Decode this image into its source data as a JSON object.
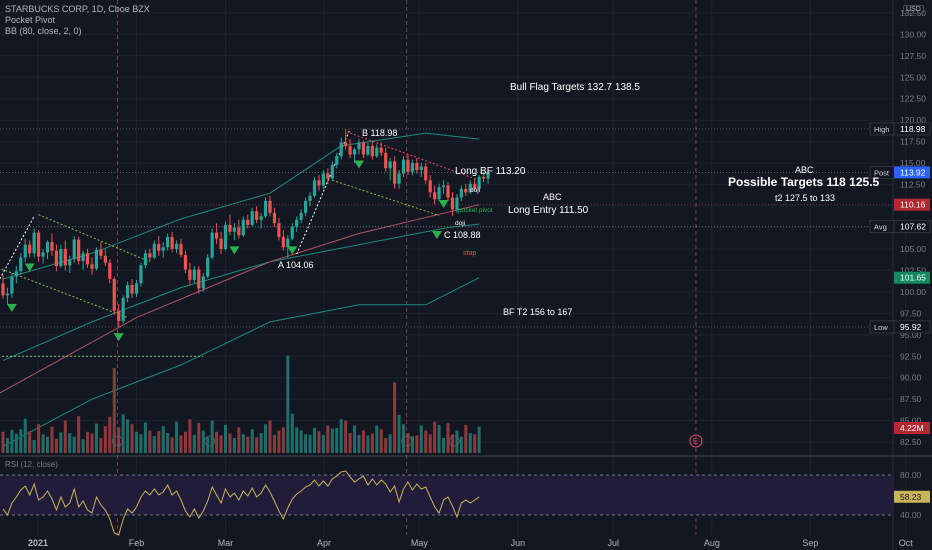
{
  "header": {
    "symbol_line": "STARBUCKS CORP, 1D, Cboe BZX",
    "indicator_1": "Pocket Pivot",
    "indicator_2": "BB (80, close, 2, 0)",
    "currency": "USD"
  },
  "rsi": {
    "legend": "RSI (12, close)",
    "current_value": "58.23",
    "axis_ticks": [
      "80.00",
      "40.00"
    ]
  },
  "price_axis": {
    "ticks": [
      "132.50",
      "130.00",
      "127.50",
      "125.00",
      "122.50",
      "120.00",
      "117.50",
      "115.00",
      "112.50",
      "110.00",
      "107.50",
      "105.00",
      "102.50",
      "100.00",
      "97.50",
      "95.00",
      "92.50",
      "90.00",
      "87.50",
      "85.00",
      "82.50"
    ]
  },
  "price_labels": [
    {
      "label": "High",
      "value": "118.98",
      "color": "#131722"
    },
    {
      "label": "Post",
      "value": "113.92",
      "color": "#2962ff"
    },
    {
      "label": "",
      "value": "110.16",
      "color": "#b22833"
    },
    {
      "label": "Avg",
      "value": "107.62",
      "color": "#131722"
    },
    {
      "label": "",
      "value": "101.65",
      "color": "#138a5e"
    },
    {
      "label": "Low",
      "value": "95.92",
      "color": "#131722"
    },
    {
      "label": "",
      "value": "4.22M",
      "color": "#b22833"
    }
  ],
  "time_axis": [
    "2021",
    "Feb",
    "Mar",
    "Apr",
    "May",
    "Jun",
    "Jul",
    "Aug",
    "Sep",
    "Oct"
  ],
  "annotations": {
    "bull_flag": "Bull Flag Targets  132.7  138.5",
    "b_point": "B 118.98",
    "long_bf": "Long BF 113.20",
    "abc_small": "ABC",
    "long_entry": "Long Entry  111.50",
    "doji_1": "doji",
    "doji_2": "doji",
    "pocket_pivot": "pocket pivot",
    "c_point": "C 108.88",
    "stop": "stop",
    "a_point": "A 104.06",
    "bf_t2": "BF T2 156 to 167",
    "abc_right": "ABC",
    "possible_targets": "Possible Targets  118  125.5",
    "t2": "t2  127.5 to 133",
    "earnings_marker": "E"
  },
  "colors": {
    "up": "#26a69a",
    "down": "#ef5350",
    "bb": "#1b8c7e",
    "wma": "#b05563",
    "rsi": "#c9b458",
    "background": "#131722"
  },
  "chart_data": {
    "type": "candlestick",
    "y_range": [
      81,
      134
    ],
    "rsi_range": [
      20,
      100
    ],
    "candles": [
      {
        "d": "2020-12-21",
        "o": 101.0,
        "h": 102.0,
        "l": 99.2,
        "c": 99.6
      },
      {
        "d": "2020-12-22",
        "o": 99.6,
        "h": 100.5,
        "l": 98.5,
        "c": 99.8
      },
      {
        "d": "2020-12-23",
        "o": 99.8,
        "h": 102.2,
        "l": 99.3,
        "c": 101.8
      },
      {
        "d": "2020-12-24",
        "o": 101.8,
        "h": 103.0,
        "l": 101.0,
        "c": 102.4
      },
      {
        "d": "2020-12-28",
        "o": 102.4,
        "h": 104.5,
        "l": 102.0,
        "c": 104.0
      },
      {
        "d": "2020-12-29",
        "o": 104.0,
        "h": 106.2,
        "l": 103.5,
        "c": 105.5
      },
      {
        "d": "2020-12-30",
        "o": 105.5,
        "h": 106.0,
        "l": 104.0,
        "c": 104.5
      },
      {
        "d": "2020-12-31",
        "o": 104.5,
        "h": 107.4,
        "l": 104.0,
        "c": 106.9
      },
      {
        "d": "2021-01-04",
        "o": 106.9,
        "h": 107.2,
        "l": 103.5,
        "c": 104.1
      },
      {
        "d": "2021-01-05",
        "o": 104.1,
        "h": 105.0,
        "l": 103.3,
        "c": 104.6
      },
      {
        "d": "2021-01-06",
        "o": 104.6,
        "h": 106.0,
        "l": 103.8,
        "c": 105.8
      },
      {
        "d": "2021-01-07",
        "o": 105.8,
        "h": 106.8,
        "l": 104.2,
        "c": 104.8
      },
      {
        "d": "2021-01-08",
        "o": 104.8,
        "h": 105.5,
        "l": 102.4,
        "c": 103.0
      },
      {
        "d": "2021-01-11",
        "o": 103.0,
        "h": 105.5,
        "l": 102.8,
        "c": 105.0
      },
      {
        "d": "2021-01-12",
        "o": 105.0,
        "h": 106.0,
        "l": 102.5,
        "c": 103.1
      },
      {
        "d": "2021-01-13",
        "o": 103.1,
        "h": 104.2,
        "l": 102.2,
        "c": 103.8
      },
      {
        "d": "2021-01-14",
        "o": 103.8,
        "h": 106.5,
        "l": 103.4,
        "c": 106.1
      },
      {
        "d": "2021-01-15",
        "o": 106.1,
        "h": 106.4,
        "l": 103.2,
        "c": 103.6
      },
      {
        "d": "2021-01-19",
        "o": 103.6,
        "h": 104.8,
        "l": 102.6,
        "c": 104.5
      },
      {
        "d": "2021-01-20",
        "o": 104.5,
        "h": 105.0,
        "l": 102.8,
        "c": 103.2
      },
      {
        "d": "2021-01-21",
        "o": 103.2,
        "h": 104.0,
        "l": 102.0,
        "c": 102.7
      },
      {
        "d": "2021-01-22",
        "o": 102.7,
        "h": 105.2,
        "l": 102.5,
        "c": 104.9
      },
      {
        "d": "2021-01-25",
        "o": 104.9,
        "h": 105.8,
        "l": 103.8,
        "c": 104.2
      },
      {
        "d": "2021-01-26",
        "o": 104.2,
        "h": 105.0,
        "l": 103.0,
        "c": 103.4
      },
      {
        "d": "2021-01-27",
        "o": 103.4,
        "h": 103.8,
        "l": 101.0,
        "c": 101.5
      },
      {
        "d": "2021-01-28",
        "o": 101.5,
        "h": 101.8,
        "l": 97.3,
        "c": 97.8
      },
      {
        "d": "2021-01-29",
        "o": 97.8,
        "h": 98.6,
        "l": 95.9,
        "c": 96.6
      },
      {
        "d": "2021-02-01",
        "o": 96.6,
        "h": 99.6,
        "l": 96.3,
        "c": 99.3
      },
      {
        "d": "2021-02-02",
        "o": 99.3,
        "h": 101.2,
        "l": 98.8,
        "c": 100.8
      },
      {
        "d": "2021-02-03",
        "o": 100.8,
        "h": 101.5,
        "l": 99.3,
        "c": 99.8
      },
      {
        "d": "2021-02-04",
        "o": 99.8,
        "h": 101.4,
        "l": 99.4,
        "c": 101.0
      },
      {
        "d": "2021-02-05",
        "o": 101.0,
        "h": 103.4,
        "l": 100.6,
        "c": 103.1
      },
      {
        "d": "2021-02-08",
        "o": 103.1,
        "h": 104.9,
        "l": 102.8,
        "c": 104.5
      },
      {
        "d": "2021-02-09",
        "o": 104.5,
        "h": 105.0,
        "l": 103.6,
        "c": 104.0
      },
      {
        "d": "2021-02-10",
        "o": 104.0,
        "h": 106.0,
        "l": 103.8,
        "c": 105.6
      },
      {
        "d": "2021-02-11",
        "o": 105.6,
        "h": 106.5,
        "l": 104.2,
        "c": 104.8
      },
      {
        "d": "2021-02-12",
        "o": 104.8,
        "h": 105.8,
        "l": 104.0,
        "c": 105.2
      },
      {
        "d": "2021-02-16",
        "o": 105.2,
        "h": 106.8,
        "l": 104.8,
        "c": 106.4
      },
      {
        "d": "2021-02-17",
        "o": 106.4,
        "h": 107.0,
        "l": 104.6,
        "c": 105.0
      },
      {
        "d": "2021-02-18",
        "o": 105.0,
        "h": 106.0,
        "l": 104.5,
        "c": 105.6
      },
      {
        "d": "2021-02-19",
        "o": 105.6,
        "h": 106.2,
        "l": 104.0,
        "c": 104.3
      },
      {
        "d": "2021-02-22",
        "o": 104.3,
        "h": 104.8,
        "l": 102.2,
        "c": 102.6
      },
      {
        "d": "2021-02-23",
        "o": 102.6,
        "h": 103.4,
        "l": 100.8,
        "c": 101.4
      },
      {
        "d": "2021-02-24",
        "o": 101.4,
        "h": 103.0,
        "l": 101.0,
        "c": 102.6
      },
      {
        "d": "2021-02-25",
        "o": 102.6,
        "h": 103.0,
        "l": 99.8,
        "c": 100.4
      },
      {
        "d": "2021-02-26",
        "o": 100.4,
        "h": 102.2,
        "l": 100.0,
        "c": 101.8
      },
      {
        "d": "2021-03-01",
        "o": 101.8,
        "h": 104.4,
        "l": 101.6,
        "c": 104.0
      },
      {
        "d": "2021-03-02",
        "o": 104.0,
        "h": 107.4,
        "l": 103.8,
        "c": 106.9
      },
      {
        "d": "2021-03-03",
        "o": 106.9,
        "h": 108.0,
        "l": 105.6,
        "c": 106.2
      },
      {
        "d": "2021-03-04",
        "o": 106.2,
        "h": 107.0,
        "l": 104.4,
        "c": 105.0
      },
      {
        "d": "2021-03-05",
        "o": 105.0,
        "h": 108.2,
        "l": 104.8,
        "c": 107.8
      },
      {
        "d": "2021-03-08",
        "o": 107.8,
        "h": 109.0,
        "l": 106.6,
        "c": 107.0
      },
      {
        "d": "2021-03-09",
        "o": 107.0,
        "h": 108.0,
        "l": 106.0,
        "c": 107.5
      },
      {
        "d": "2021-03-10",
        "o": 107.5,
        "h": 108.4,
        "l": 106.2,
        "c": 106.6
      },
      {
        "d": "2021-03-11",
        "o": 106.6,
        "h": 108.8,
        "l": 106.4,
        "c": 108.4
      },
      {
        "d": "2021-03-12",
        "o": 108.4,
        "h": 109.0,
        "l": 107.4,
        "c": 107.8
      },
      {
        "d": "2021-03-15",
        "o": 107.8,
        "h": 109.8,
        "l": 107.6,
        "c": 109.4
      },
      {
        "d": "2021-03-16",
        "o": 109.4,
        "h": 110.0,
        "l": 108.0,
        "c": 108.4
      },
      {
        "d": "2021-03-17",
        "o": 108.4,
        "h": 109.2,
        "l": 107.4,
        "c": 108.8
      },
      {
        "d": "2021-03-18",
        "o": 108.8,
        "h": 111.0,
        "l": 108.6,
        "c": 110.6
      },
      {
        "d": "2021-03-19",
        "o": 110.6,
        "h": 111.2,
        "l": 108.8,
        "c": 109.2
      },
      {
        "d": "2021-03-22",
        "o": 109.2,
        "h": 109.8,
        "l": 107.6,
        "c": 108.0
      },
      {
        "d": "2021-03-23",
        "o": 108.0,
        "h": 108.6,
        "l": 106.0,
        "c": 106.4
      },
      {
        "d": "2021-03-24",
        "o": 106.4,
        "h": 107.2,
        "l": 104.8,
        "c": 105.2
      },
      {
        "d": "2021-03-25",
        "o": 105.2,
        "h": 106.6,
        "l": 104.0,
        "c": 106.2
      },
      {
        "d": "2021-03-26",
        "o": 106.2,
        "h": 108.0,
        "l": 106.0,
        "c": 107.6
      },
      {
        "d": "2021-03-29",
        "o": 107.6,
        "h": 108.8,
        "l": 107.0,
        "c": 108.4
      },
      {
        "d": "2021-03-30",
        "o": 108.4,
        "h": 109.6,
        "l": 108.0,
        "c": 109.2
      },
      {
        "d": "2021-03-31",
        "o": 109.2,
        "h": 111.0,
        "l": 108.8,
        "c": 110.6
      },
      {
        "d": "2021-04-01",
        "o": 110.6,
        "h": 111.6,
        "l": 110.0,
        "c": 111.2
      },
      {
        "d": "2021-04-05",
        "o": 111.2,
        "h": 113.4,
        "l": 111.0,
        "c": 113.0
      },
      {
        "d": "2021-04-06",
        "o": 113.0,
        "h": 113.6,
        "l": 111.8,
        "c": 112.4
      },
      {
        "d": "2021-04-07",
        "o": 112.4,
        "h": 114.2,
        "l": 112.0,
        "c": 113.8
      },
      {
        "d": "2021-04-08",
        "o": 113.8,
        "h": 114.4,
        "l": 112.6,
        "c": 113.2
      },
      {
        "d": "2021-04-09",
        "o": 113.2,
        "h": 115.2,
        "l": 113.0,
        "c": 114.8
      },
      {
        "d": "2021-04-12",
        "o": 114.8,
        "h": 116.2,
        "l": 114.4,
        "c": 115.8
      },
      {
        "d": "2021-04-13",
        "o": 115.8,
        "h": 118.0,
        "l": 115.4,
        "c": 117.4
      },
      {
        "d": "2021-04-14",
        "o": 117.4,
        "h": 118.98,
        "l": 116.6,
        "c": 117.0
      },
      {
        "d": "2021-04-15",
        "o": 117.0,
        "h": 117.8,
        "l": 115.6,
        "c": 116.0
      },
      {
        "d": "2021-04-16",
        "o": 116.0,
        "h": 116.8,
        "l": 115.0,
        "c": 116.6
      },
      {
        "d": "2021-04-19",
        "o": 116.6,
        "h": 117.8,
        "l": 116.0,
        "c": 117.4
      },
      {
        "d": "2021-04-20",
        "o": 117.4,
        "h": 117.6,
        "l": 115.6,
        "c": 116.0
      },
      {
        "d": "2021-04-21",
        "o": 116.0,
        "h": 117.4,
        "l": 115.8,
        "c": 117.0
      },
      {
        "d": "2021-04-22",
        "o": 117.0,
        "h": 117.6,
        "l": 115.4,
        "c": 115.8
      },
      {
        "d": "2021-04-23",
        "o": 115.8,
        "h": 117.2,
        "l": 115.6,
        "c": 116.8
      },
      {
        "d": "2021-04-26",
        "o": 116.8,
        "h": 117.4,
        "l": 115.8,
        "c": 116.2
      },
      {
        "d": "2021-04-27",
        "o": 116.2,
        "h": 116.8,
        "l": 114.0,
        "c": 114.4
      },
      {
        "d": "2021-04-28",
        "o": 114.4,
        "h": 115.6,
        "l": 113.0,
        "c": 115.2
      },
      {
        "d": "2021-04-29",
        "o": 115.2,
        "h": 115.8,
        "l": 112.0,
        "c": 112.6
      },
      {
        "d": "2021-04-30",
        "o": 112.6,
        "h": 114.2,
        "l": 112.0,
        "c": 113.8
      },
      {
        "d": "2021-05-03",
        "o": 113.8,
        "h": 115.8,
        "l": 113.4,
        "c": 115.4
      },
      {
        "d": "2021-05-04",
        "o": 115.4,
        "h": 116.0,
        "l": 113.6,
        "c": 114.0
      },
      {
        "d": "2021-05-05",
        "o": 114.0,
        "h": 115.4,
        "l": 113.6,
        "c": 115.0
      },
      {
        "d": "2021-05-06",
        "o": 115.0,
        "h": 115.6,
        "l": 113.8,
        "c": 114.2
      },
      {
        "d": "2021-05-07",
        "o": 114.2,
        "h": 115.0,
        "l": 113.4,
        "c": 114.6
      },
      {
        "d": "2021-05-10",
        "o": 114.6,
        "h": 115.0,
        "l": 112.6,
        "c": 113.0
      },
      {
        "d": "2021-05-11",
        "o": 113.0,
        "h": 113.6,
        "l": 111.0,
        "c": 111.6
      },
      {
        "d": "2021-05-12",
        "o": 111.6,
        "h": 112.4,
        "l": 110.2,
        "c": 110.8
      },
      {
        "d": "2021-05-13",
        "o": 110.8,
        "h": 112.6,
        "l": 110.6,
        "c": 112.2
      },
      {
        "d": "2021-05-14",
        "o": 112.2,
        "h": 113.0,
        "l": 111.4,
        "c": 112.4
      },
      {
        "d": "2021-05-17",
        "o": 112.4,
        "h": 112.8,
        "l": 110.6,
        "c": 111.0
      },
      {
        "d": "2021-05-18",
        "o": 111.0,
        "h": 111.6,
        "l": 108.88,
        "c": 109.6
      },
      {
        "d": "2021-05-19",
        "o": 109.6,
        "h": 111.4,
        "l": 109.2,
        "c": 111.0
      },
      {
        "d": "2021-05-20",
        "o": 111.0,
        "h": 112.4,
        "l": 110.6,
        "c": 112.0
      },
      {
        "d": "2021-05-21",
        "o": 112.0,
        "h": 112.6,
        "l": 111.2,
        "c": 111.6
      },
      {
        "d": "2021-05-24",
        "o": 111.6,
        "h": 113.0,
        "l": 111.4,
        "c": 112.6
      },
      {
        "d": "2021-05-25",
        "o": 112.6,
        "h": 113.2,
        "l": 111.8,
        "c": 112.0
      },
      {
        "d": "2021-05-26",
        "o": 112.0,
        "h": 113.6,
        "l": 111.8,
        "c": 113.4
      },
      {
        "d": "2021-05-27",
        "o": 113.4,
        "h": 114.0,
        "l": 112.8,
        "c": 113.2
      },
      {
        "d": "2021-05-28",
        "o": 113.2,
        "h": 114.2,
        "l": 112.6,
        "c": 113.92
      }
    ],
    "volume_scale": 16,
    "volumes": [
      3.4,
      2.4,
      3.7,
      3.1,
      3.8,
      5.5,
      3.5,
      2.1,
      4.6,
      3.0,
      2.6,
      4.2,
      2.3,
      3.3,
      5.2,
      3.2,
      2.6,
      5.9,
      2.2,
      3.4,
      3.1,
      4.7,
      2.4,
      4.3,
      5.8,
      13.6,
      4.1,
      6.2,
      5.4,
      4.6,
      3.4,
      3.0,
      4.9,
      3.6,
      2.7,
      3.5,
      4.3,
      3.2,
      2.5,
      5.0,
      2.8,
      3.4,
      5.4,
      2.9,
      4.8,
      3.6,
      2.6,
      5.2,
      3.4,
      2.8,
      4.5,
      3.1,
      2.4,
      4.1,
      3.0,
      2.6,
      3.8,
      2.5,
      3.2,
      4.6,
      5.2,
      2.9,
      3.6,
      4.1,
      15.6,
      6.3,
      4.1,
      3.6,
      3.0,
      2.9,
      4.0,
      3.5,
      2.9,
      4.4,
      3.9,
      4.0,
      5.4,
      5.2,
      3.2,
      4.4,
      2.9,
      3.6,
      2.8,
      3.1,
      4.4,
      3.8,
      2.4,
      3.0,
      11.3,
      6.1,
      4.6,
      3.2,
      2.7,
      2.8,
      4.4,
      3.6,
      3.0,
      5.0,
      4.5,
      2.4,
      4.8,
      3.0,
      3.6,
      2.6,
      4.5,
      3.2,
      3.0,
      4.22
    ],
    "bb_mid": [
      [
        0,
        92.0
      ],
      [
        20,
        96.5
      ],
      [
        40,
        100.5
      ],
      [
        60,
        103.5
      ],
      [
        80,
        105.5
      ],
      [
        100,
        107.5
      ],
      [
        107,
        107.9
      ]
    ],
    "bb_upper": [
      [
        0,
        101.5
      ],
      [
        20,
        104.5
      ],
      [
        40,
        108.5
      ],
      [
        60,
        111.5
      ],
      [
        76,
        117.0
      ],
      [
        95,
        118.5
      ],
      [
        107,
        117.8
      ]
    ],
    "bb_lower": [
      [
        0,
        82.0
      ],
      [
        20,
        87.5
      ],
      [
        40,
        91.5
      ],
      [
        60,
        96.5
      ],
      [
        80,
        98.5
      ],
      [
        95,
        98.5
      ],
      [
        107,
        101.65
      ]
    ],
    "wma": [
      [
        -5,
        87.0
      ],
      [
        30,
        97.0
      ],
      [
        60,
        103.5
      ],
      [
        80,
        106.8
      ],
      [
        107,
        110.16
      ]
    ],
    "rsi_values": [
      46,
      40,
      52,
      58,
      65,
      69,
      60,
      71,
      55,
      58,
      64,
      56,
      45,
      58,
      48,
      52,
      66,
      48,
      54,
      45,
      42,
      58,
      50,
      45,
      36,
      22,
      20,
      36,
      46,
      42,
      48,
      58,
      64,
      60,
      66,
      60,
      63,
      70,
      60,
      64,
      55,
      44,
      38,
      46,
      37,
      44,
      54,
      68,
      60,
      52,
      66,
      58,
      62,
      55,
      64,
      59,
      67,
      58,
      62,
      70,
      63,
      54,
      44,
      36,
      47,
      56,
      61,
      64,
      68,
      70,
      75,
      69,
      74,
      69,
      76,
      79,
      83,
      84,
      78,
      73,
      76,
      79,
      70,
      76,
      70,
      75,
      71,
      63,
      69,
      53,
      66,
      73,
      65,
      71,
      66,
      68,
      58,
      48,
      42,
      55,
      58,
      49,
      38,
      52,
      55,
      52,
      55,
      58.23
    ],
    "pocket_pivot_days": [
      2,
      6,
      26,
      52,
      65,
      80,
      99
    ],
    "horizontal_levels": [
      118.98,
      113.92,
      107.62,
      95.92
    ]
  }
}
